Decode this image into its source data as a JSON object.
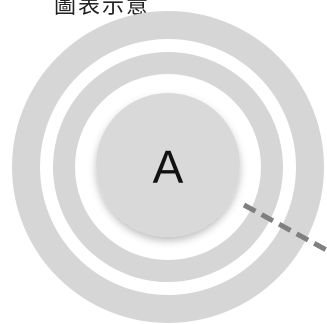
{
  "caption": "圖表示意",
  "node": {
    "label": "A"
  },
  "colors": {
    "ring": "#d6d6d6",
    "node_fill": "#d9d9d9",
    "connector": "#7f7f7f"
  }
}
